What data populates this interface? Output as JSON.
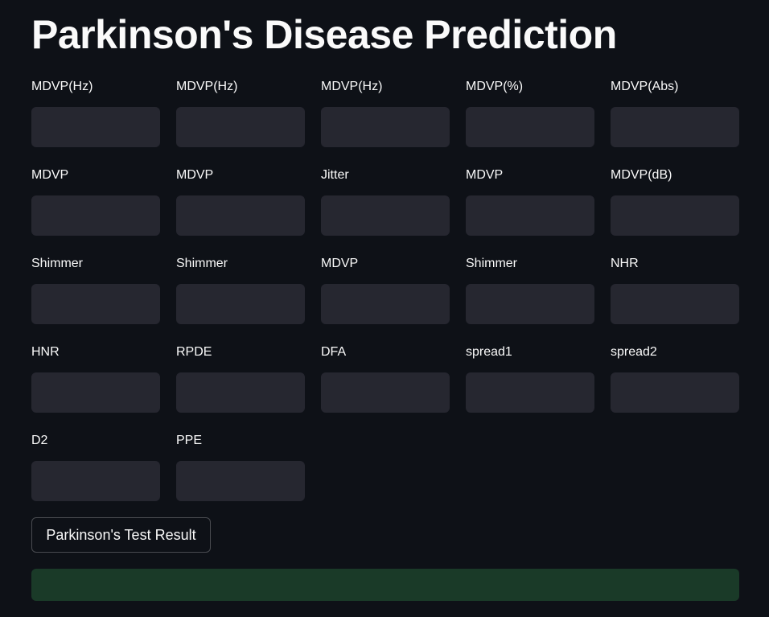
{
  "app": {
    "title": "Parkinson's Disease Prediction"
  },
  "fields": [
    {
      "label": "MDVP(Hz)",
      "value": ""
    },
    {
      "label": "MDVP(Hz)",
      "value": ""
    },
    {
      "label": "MDVP(Hz)",
      "value": ""
    },
    {
      "label": "MDVP(%)",
      "value": ""
    },
    {
      "label": "MDVP(Abs)",
      "value": ""
    },
    {
      "label": "MDVP",
      "value": ""
    },
    {
      "label": "MDVP",
      "value": ""
    },
    {
      "label": "Jitter",
      "value": ""
    },
    {
      "label": "MDVP",
      "value": ""
    },
    {
      "label": "MDVP(dB)",
      "value": ""
    },
    {
      "label": "Shimmer",
      "value": ""
    },
    {
      "label": "Shimmer",
      "value": ""
    },
    {
      "label": "MDVP",
      "value": ""
    },
    {
      "label": "Shimmer",
      "value": ""
    },
    {
      "label": "NHR",
      "value": ""
    },
    {
      "label": "HNR",
      "value": ""
    },
    {
      "label": "RPDE",
      "value": ""
    },
    {
      "label": "DFA",
      "value": ""
    },
    {
      "label": "spread1",
      "value": ""
    },
    {
      "label": "spread2",
      "value": ""
    },
    {
      "label": "D2",
      "value": ""
    },
    {
      "label": "PPE",
      "value": ""
    }
  ],
  "actions": {
    "submit_label": "Parkinson's Test Result"
  },
  "result": {
    "text": "",
    "color": "#1a3a28"
  }
}
